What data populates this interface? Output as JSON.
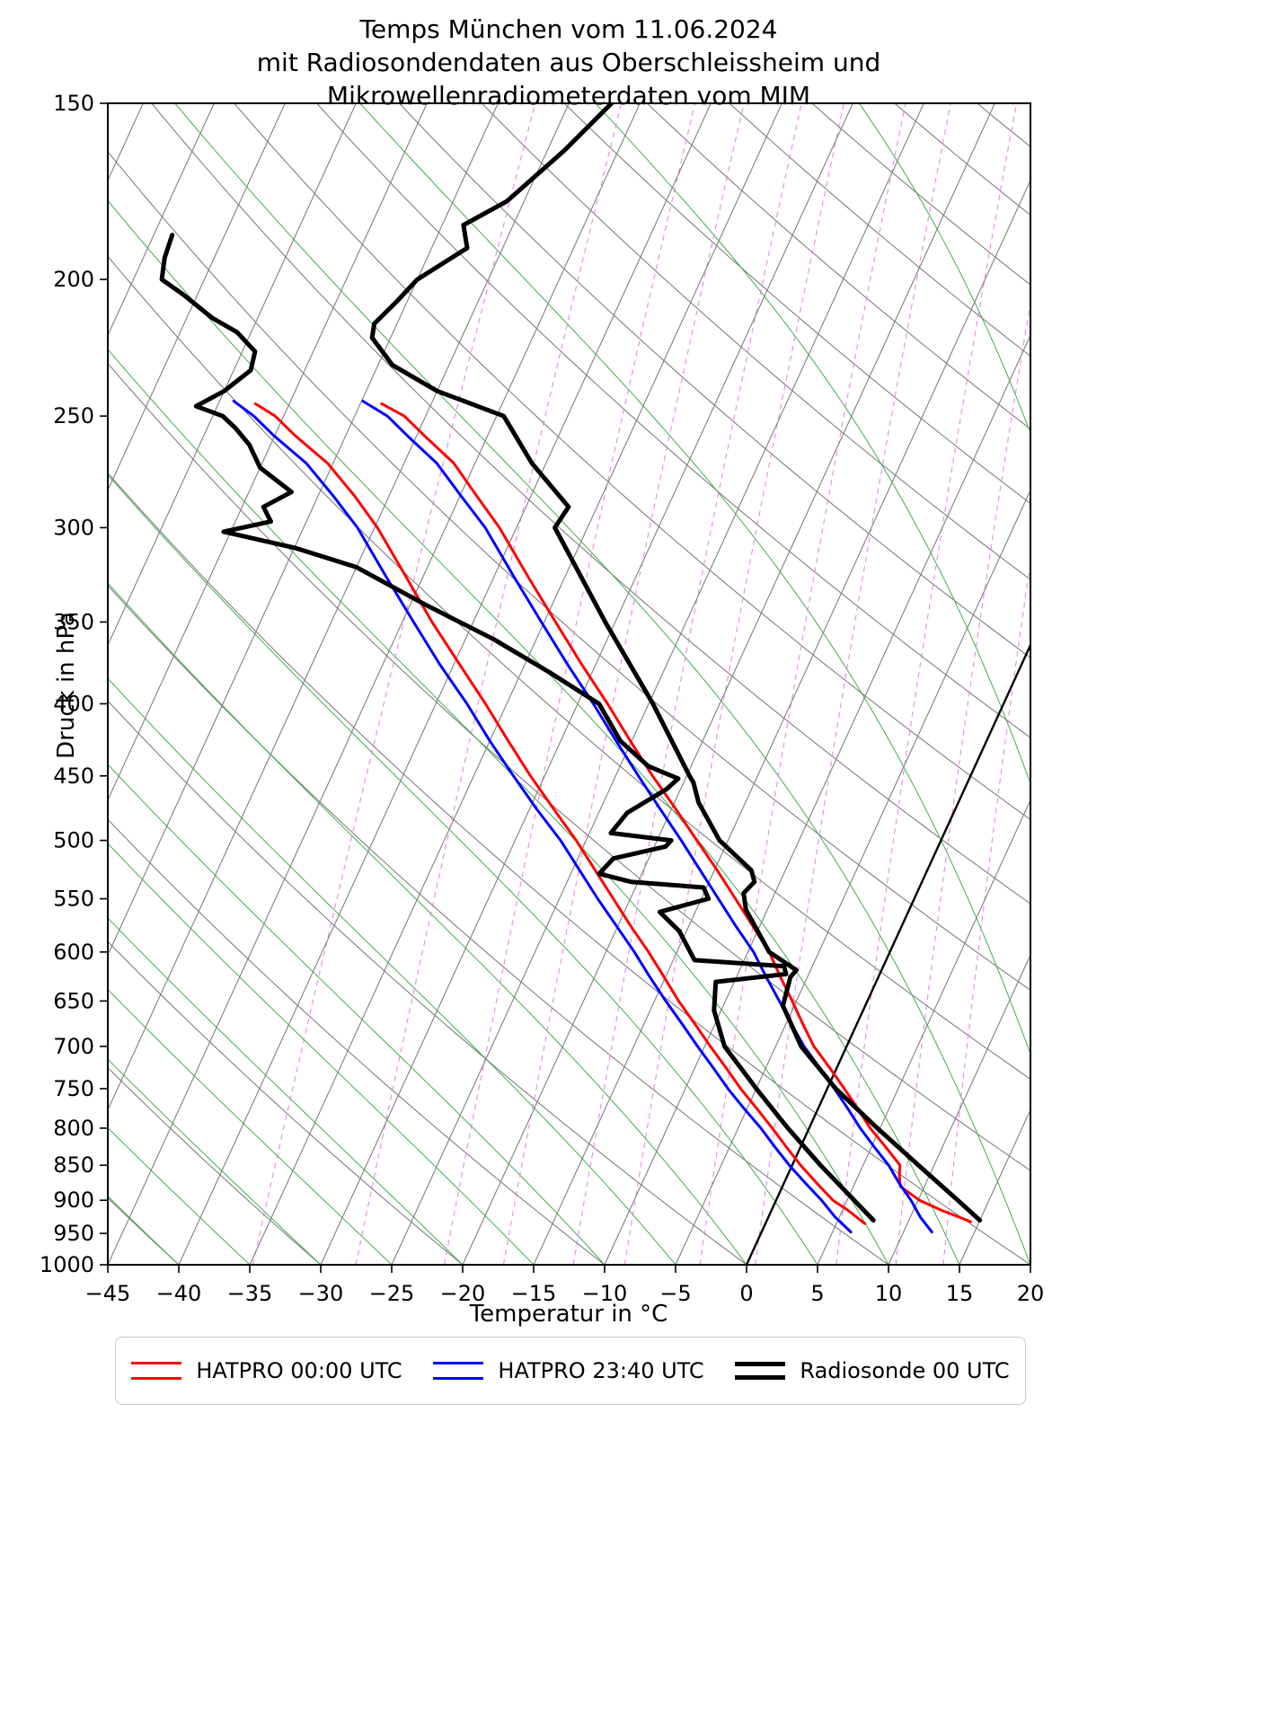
{
  "title": {
    "line1": "Temps München vom 11.06.2024",
    "line2": "mit Radiosondendaten aus Oberschleissheim und",
    "line3": "Mikrowellenradiometerdaten vom MIM"
  },
  "axes": {
    "x_label": "Temperatur in °C",
    "y_label": "Druck in hPa",
    "x_range": [
      -45,
      20
    ],
    "p_range": [
      150,
      1000
    ],
    "x_ticks": [
      -45,
      -40,
      -35,
      -30,
      -25,
      -20,
      -15,
      -10,
      -5,
      0,
      5,
      10,
      15,
      20
    ],
    "x_tick_labels": [
      "−45",
      "−40",
      "−35",
      "−30",
      "−25",
      "−20",
      "−15",
      "−10",
      "−5",
      "0",
      "5",
      "10",
      "15",
      "20"
    ],
    "y_ticks": [
      150,
      200,
      250,
      300,
      350,
      400,
      450,
      500,
      550,
      600,
      650,
      700,
      750,
      800,
      850,
      900,
      950,
      1000
    ],
    "y_tick_labels": [
      "150",
      "200",
      "250",
      "300",
      "350",
      "400",
      "450",
      "500",
      "550",
      "600",
      "650",
      "700",
      "750",
      "800",
      "850",
      "900",
      "950",
      "1000"
    ]
  },
  "legend": [
    {
      "label": "HATPRO 00:00 UTC",
      "color": "#ff0000",
      "line_width": 3
    },
    {
      "label": "HATPRO 23:40 UTC",
      "color": "#0000ff",
      "line_width": 3
    },
    {
      "label": "Radiosonde 00 UTC",
      "color": "#000000",
      "line_width": 5
    }
  ],
  "chart_data": {
    "type": "line",
    "subtype": "skew-t-log-p",
    "title": "Temps München vom 11.06.2024 mit Radiosondendaten aus Oberschleissheim und Mikrowellenradiometerdaten vom MIM",
    "xlabel": "Temperatur in °C",
    "ylabel": "Druck in hPa",
    "x_range_degC": [
      -45,
      20
    ],
    "p_range_hPa": [
      150,
      1000
    ],
    "skew_deg_per_decade": 45.5,
    "background": {
      "isotherm_step": 5,
      "isotherm_range": [
        -120,
        45
      ],
      "isotherm_color": "#7f7f7f",
      "zero_isotherm_color": "#000000",
      "dry_adiabat_step": 10,
      "dry_adiabat_range": [
        -40,
        170
      ],
      "dry_adiabat_color": "#7f7f7f",
      "moist_adiabat_step": 5,
      "moist_adiabat_range": [
        -45,
        40
      ],
      "moist_adiabat_color": "#3fae4c",
      "mixing_ratios_g_per_kg": [
        0.2,
        0.4,
        0.7,
        1,
        1.5,
        2,
        3,
        4,
        6,
        8,
        10,
        15,
        20,
        30
      ],
      "mixing_ratio_color": "#e878e8"
    },
    "series": [
      {
        "name": "HATPRO 00:00 UTC temperature",
        "color": "#ff0000",
        "width": 3,
        "points_p_hPa_T_degC": [
          [
            932,
            14.4
          ],
          [
            915,
            12.0
          ],
          [
            900,
            10.1
          ],
          [
            880,
            8.3
          ],
          [
            865,
            7.9
          ],
          [
            850,
            7.6
          ],
          [
            825,
            6.0
          ],
          [
            800,
            4.3
          ],
          [
            775,
            2.8
          ],
          [
            750,
            1.2
          ],
          [
            725,
            -0.5
          ],
          [
            700,
            -2.3
          ],
          [
            675,
            -3.8
          ],
          [
            650,
            -5.3
          ],
          [
            625,
            -6.9
          ],
          [
            600,
            -8.5
          ],
          [
            575,
            -10.5
          ],
          [
            550,
            -12.6
          ],
          [
            525,
            -14.8
          ],
          [
            500,
            -17.2
          ],
          [
            475,
            -19.7
          ],
          [
            450,
            -22.4
          ],
          [
            425,
            -25.1
          ],
          [
            400,
            -27.9
          ],
          [
            375,
            -31.0
          ],
          [
            350,
            -34.2
          ],
          [
            325,
            -37.6
          ],
          [
            300,
            -41.2
          ],
          [
            285,
            -43.8
          ],
          [
            270,
            -46.5
          ],
          [
            258,
            -49.5
          ],
          [
            250,
            -51.5
          ],
          [
            245,
            -53.5
          ]
        ]
      },
      {
        "name": "HATPRO 00:00 UTC dewpoint",
        "color": "#ff0000",
        "width": 3,
        "points_p_hPa_T_degC": [
          [
            935,
            7.0
          ],
          [
            915,
            5.4
          ],
          [
            900,
            4.0
          ],
          [
            875,
            2.3
          ],
          [
            850,
            0.6
          ],
          [
            825,
            -1.0
          ],
          [
            800,
            -2.6
          ],
          [
            775,
            -4.3
          ],
          [
            750,
            -6.1
          ],
          [
            725,
            -7.8
          ],
          [
            700,
            -9.6
          ],
          [
            675,
            -11.4
          ],
          [
            650,
            -13.3
          ],
          [
            625,
            -15.1
          ],
          [
            600,
            -17.0
          ],
          [
            575,
            -19.1
          ],
          [
            550,
            -21.2
          ],
          [
            525,
            -23.4
          ],
          [
            500,
            -25.7
          ],
          [
            475,
            -28.3
          ],
          [
            450,
            -31.0
          ],
          [
            425,
            -33.7
          ],
          [
            400,
            -36.5
          ],
          [
            375,
            -39.6
          ],
          [
            350,
            -42.9
          ],
          [
            325,
            -46.2
          ],
          [
            300,
            -49.8
          ],
          [
            285,
            -52.4
          ],
          [
            270,
            -55.4
          ],
          [
            258,
            -58.6
          ],
          [
            250,
            -60.6
          ],
          [
            245,
            -62.4
          ]
        ]
      },
      {
        "name": "HATPRO 23:40 UTC temperature",
        "color": "#0000ff",
        "width": 3,
        "points_p_hPa_T_degC": [
          [
            948,
            12.0
          ],
          [
            925,
            10.7
          ],
          [
            900,
            9.5
          ],
          [
            875,
            8.1
          ],
          [
            850,
            6.8
          ],
          [
            825,
            5.2
          ],
          [
            800,
            3.6
          ],
          [
            775,
            2.1
          ],
          [
            750,
            0.5
          ],
          [
            725,
            -1.2
          ],
          [
            700,
            -3.0
          ],
          [
            675,
            -4.6
          ],
          [
            650,
            -6.2
          ],
          [
            625,
            -7.9
          ],
          [
            600,
            -9.6
          ],
          [
            575,
            -11.7
          ],
          [
            550,
            -13.8
          ],
          [
            525,
            -16.0
          ],
          [
            500,
            -18.3
          ],
          [
            475,
            -20.8
          ],
          [
            450,
            -23.4
          ],
          [
            425,
            -26.1
          ],
          [
            400,
            -28.9
          ],
          [
            375,
            -32.0
          ],
          [
            350,
            -35.2
          ],
          [
            325,
            -38.6
          ],
          [
            300,
            -42.2
          ],
          [
            285,
            -44.9
          ],
          [
            270,
            -47.7
          ],
          [
            258,
            -50.7
          ],
          [
            250,
            -52.7
          ],
          [
            244,
            -54.9
          ]
        ]
      },
      {
        "name": "HATPRO 23:40 UTC dewpoint",
        "color": "#0000ff",
        "width": 3,
        "points_p_hPa_T_degC": [
          [
            948,
            6.3
          ],
          [
            925,
            4.7
          ],
          [
            900,
            3.2
          ],
          [
            875,
            1.5
          ],
          [
            850,
            -0.2
          ],
          [
            825,
            -1.8
          ],
          [
            800,
            -3.4
          ],
          [
            775,
            -5.2
          ],
          [
            750,
            -7.0
          ],
          [
            725,
            -8.7
          ],
          [
            700,
            -10.5
          ],
          [
            675,
            -12.3
          ],
          [
            650,
            -14.2
          ],
          [
            625,
            -16.1
          ],
          [
            600,
            -18.0
          ],
          [
            575,
            -20.1
          ],
          [
            550,
            -22.3
          ],
          [
            525,
            -24.5
          ],
          [
            500,
            -26.8
          ],
          [
            475,
            -29.5
          ],
          [
            450,
            -32.2
          ],
          [
            425,
            -35.0
          ],
          [
            400,
            -37.8
          ],
          [
            375,
            -41.0
          ],
          [
            350,
            -44.2
          ],
          [
            325,
            -47.6
          ],
          [
            300,
            -51.2
          ],
          [
            285,
            -53.9
          ],
          [
            270,
            -56.9
          ],
          [
            258,
            -60.1
          ],
          [
            250,
            -62.1
          ],
          [
            244,
            -64.0
          ]
        ]
      },
      {
        "name": "Radiosonde 00 UTC temperature",
        "color": "#000000",
        "width": 5,
        "points_p_hPa_T_degC": [
          [
            930,
            15.0
          ],
          [
            900,
            12.8
          ],
          [
            850,
            8.9
          ],
          [
            800,
            4.8
          ],
          [
            750,
            0.6
          ],
          [
            700,
            -3.2
          ],
          [
            655,
            -5.8
          ],
          [
            625,
            -6.2
          ],
          [
            618,
            -6.0
          ],
          [
            600,
            -8.5
          ],
          [
            560,
            -11.5
          ],
          [
            545,
            -12.2
          ],
          [
            535,
            -11.8
          ],
          [
            525,
            -12.4
          ],
          [
            500,
            -15.6
          ],
          [
            470,
            -18.3
          ],
          [
            455,
            -19.3
          ],
          [
            450,
            -19.8
          ],
          [
            400,
            -24.7
          ],
          [
            350,
            -30.7
          ],
          [
            300,
            -37.3
          ],
          [
            290,
            -37.0
          ],
          [
            270,
            -41.0
          ],
          [
            250,
            -44.5
          ],
          [
            240,
            -50.0
          ],
          [
            230,
            -54.0
          ],
          [
            220,
            -56.3
          ],
          [
            215,
            -56.6
          ],
          [
            207,
            -55.7
          ],
          [
            200,
            -55.0
          ],
          [
            190,
            -52.5
          ],
          [
            183,
            -53.5
          ],
          [
            176,
            -51.2
          ],
          [
            162,
            -48.8
          ],
          [
            150,
            -47.0
          ]
        ]
      },
      {
        "name": "Radiosonde 00 UTC dewpoint",
        "color": "#000000",
        "width": 5,
        "points_p_hPa_T_degC": [
          [
            930,
            7.5
          ],
          [
            900,
            5.5
          ],
          [
            850,
            2.0
          ],
          [
            800,
            -1.5
          ],
          [
            750,
            -5.0
          ],
          [
            700,
            -8.6
          ],
          [
            660,
            -10.5
          ],
          [
            630,
            -11.3
          ],
          [
            622,
            -6.6
          ],
          [
            614,
            -7.0
          ],
          [
            608,
            -13.5
          ],
          [
            580,
            -15.5
          ],
          [
            562,
            -17.5
          ],
          [
            550,
            -14.5
          ],
          [
            540,
            -15.2
          ],
          [
            535,
            -20.5
          ],
          [
            528,
            -23.0
          ],
          [
            515,
            -22.5
          ],
          [
            505,
            -19.2
          ],
          [
            500,
            -19.0
          ],
          [
            494,
            -23.5
          ],
          [
            478,
            -23.0
          ],
          [
            460,
            -21.0
          ],
          [
            452,
            -20.5
          ],
          [
            443,
            -23.0
          ],
          [
            425,
            -25.8
          ],
          [
            400,
            -28.5
          ],
          [
            380,
            -33.0
          ],
          [
            360,
            -38.0
          ],
          [
            340,
            -44.0
          ],
          [
            320,
            -50.0
          ],
          [
            310,
            -55.0
          ],
          [
            302,
            -60.5
          ],
          [
            297,
            -57.5
          ],
          [
            290,
            -58.5
          ],
          [
            283,
            -57.0
          ],
          [
            272,
            -60.0
          ],
          [
            262,
            -61.5
          ],
          [
            255,
            -63.0
          ],
          [
            250,
            -64.3
          ],
          [
            246,
            -66.5
          ],
          [
            240,
            -65.0
          ],
          [
            232,
            -63.8
          ],
          [
            225,
            -64.1
          ],
          [
            218,
            -66.0
          ],
          [
            213,
            -68.2
          ],
          [
            205,
            -71.0
          ],
          [
            200,
            -73.0
          ],
          [
            193,
            -73.5
          ],
          [
            186,
            -73.7
          ]
        ]
      }
    ]
  }
}
